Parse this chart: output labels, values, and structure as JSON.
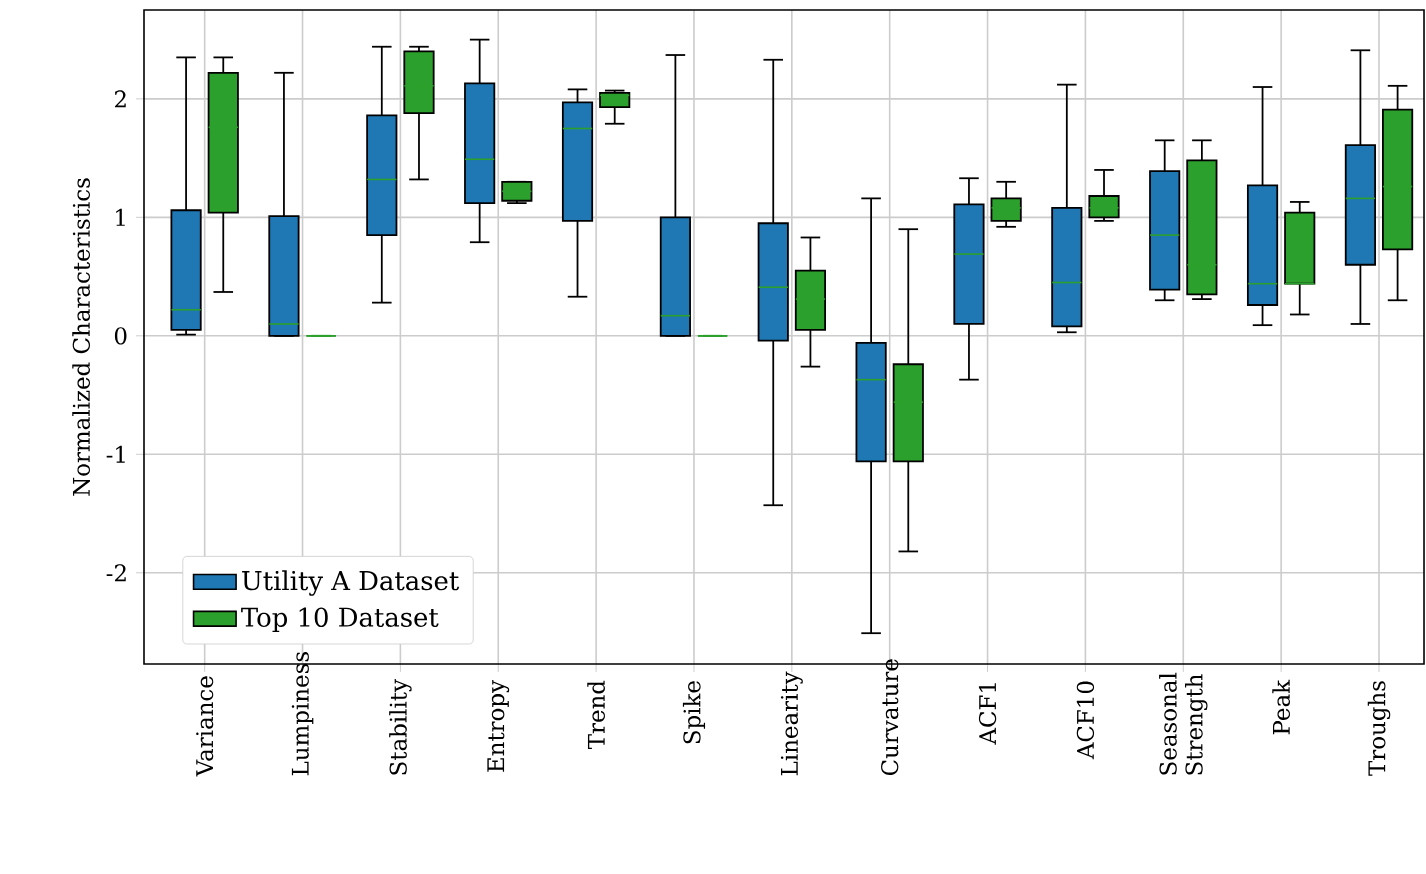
{
  "chart_data": {
    "type": "box",
    "ylabel": "Normalized Characteristics",
    "categories": [
      "Variance",
      "Lumpiness",
      "Stability",
      "Entropy",
      "Trend",
      "Spike",
      "Linearity",
      "Curvature",
      "ACF1",
      "ACF10",
      "Seasonal Strength",
      "Peak",
      "Troughs"
    ],
    "ylim": [
      -2.77,
      2.75
    ],
    "yticks": [
      -2,
      -1,
      0,
      1,
      2
    ],
    "grid": true,
    "legend": "bottom left",
    "series": [
      {
        "name": "Utility A Dataset",
        "color": "#1f77b4",
        "boxes": [
          {
            "low": 0.01,
            "q1": 0.05,
            "median": 0.22,
            "q3": 1.06,
            "high": 2.35
          },
          {
            "low": 0,
            "q1": 0,
            "median": 0.1,
            "q3": 1.01,
            "high": 2.22
          },
          {
            "low": 0.28,
            "q1": 0.85,
            "median": 1.32,
            "q3": 1.86,
            "high": 2.44
          },
          {
            "low": 0.79,
            "q1": 1.12,
            "median": 1.49,
            "q3": 2.13,
            "high": 2.5
          },
          {
            "low": 0.33,
            "q1": 0.97,
            "median": 1.75,
            "q3": 1.97,
            "high": 2.08
          },
          {
            "low": 0,
            "q1": 0,
            "median": 0.17,
            "q3": 1.0,
            "high": 2.37
          },
          {
            "low": -1.43,
            "q1": -0.04,
            "median": 0.41,
            "q3": 0.95,
            "high": 2.33
          },
          {
            "low": -2.51,
            "q1": -1.06,
            "median": -0.37,
            "q3": -0.06,
            "high": 1.16
          },
          {
            "low": -0.37,
            "q1": 0.1,
            "median": 0.69,
            "q3": 1.11,
            "high": 1.33
          },
          {
            "low": 0.03,
            "q1": 0.08,
            "median": 0.45,
            "q3": 1.08,
            "high": 2.12
          },
          {
            "low": 0.3,
            "q1": 0.39,
            "median": 0.85,
            "q3": 1.39,
            "high": 1.65
          },
          {
            "low": 0.09,
            "q1": 0.26,
            "median": 0.44,
            "q3": 1.27,
            "high": 2.1
          },
          {
            "low": 0.1,
            "q1": 0.6,
            "median": 1.16,
            "q3": 1.61,
            "high": 2.41
          }
        ]
      },
      {
        "name": "Top 10 Dataset",
        "color": "#2ca02c",
        "boxes": [
          {
            "low": 0.37,
            "q1": 1.04,
            "median": 1.76,
            "q3": 2.22,
            "high": 2.35
          },
          {
            "low": 0,
            "q1": 0,
            "median": 0,
            "q3": 0,
            "high": 0
          },
          {
            "low": 1.32,
            "q1": 1.88,
            "median": 2.11,
            "q3": 2.4,
            "high": 2.44
          },
          {
            "low": 1.12,
            "q1": 1.14,
            "median": 1.22,
            "q3": 1.3,
            "high": 1.3
          },
          {
            "low": 1.79,
            "q1": 1.93,
            "median": 2.03,
            "q3": 2.05,
            "high": 2.07
          },
          {
            "low": 0,
            "q1": 0,
            "median": 0,
            "q3": 0,
            "high": 0
          },
          {
            "low": -0.26,
            "q1": 0.05,
            "median": 0.31,
            "q3": 0.55,
            "high": 0.83
          },
          {
            "low": -1.82,
            "q1": -1.06,
            "median": -0.56,
            "q3": -0.24,
            "high": 0.9
          },
          {
            "low": 0.92,
            "q1": 0.97,
            "median": 1.08,
            "q3": 1.16,
            "high": 1.3
          },
          {
            "low": 0.97,
            "q1": 1.0,
            "median": 1.08,
            "q3": 1.18,
            "high": 1.4
          },
          {
            "low": 0.31,
            "q1": 0.35,
            "median": 0.6,
            "q3": 1.48,
            "high": 1.65
          },
          {
            "low": 0.18,
            "q1": 0.44,
            "median": 0.44,
            "q3": 1.04,
            "high": 1.13
          },
          {
            "low": 0.3,
            "q1": 0.73,
            "median": 1.26,
            "q3": 1.91,
            "high": 2.11
          }
        ]
      }
    ]
  }
}
